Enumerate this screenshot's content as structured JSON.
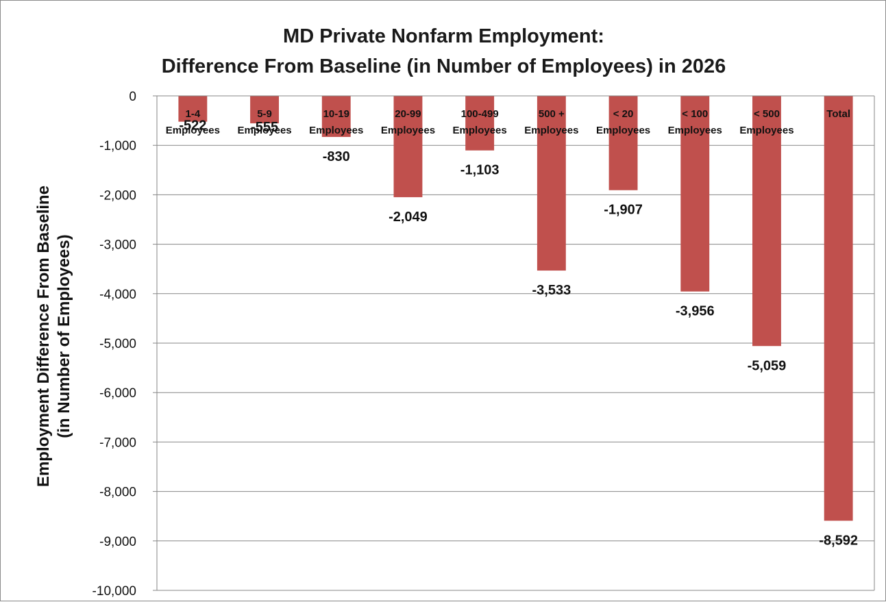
{
  "chart_data": {
    "type": "bar",
    "title_lines": [
      "MD Private Nonfarm Employment:",
      "Difference From Baseline (in Number of Employees) in 2026"
    ],
    "ylabel_lines": [
      "Employment Difference From Baseline",
      "(in Number of Employees)"
    ],
    "xlabel": "",
    "categories": [
      [
        "1-4",
        "Employees"
      ],
      [
        "5-9",
        "Employees"
      ],
      [
        "10-19",
        "Employees"
      ],
      [
        "20-99",
        "Employees"
      ],
      [
        "100-499",
        "Employees"
      ],
      [
        "500 +",
        "Employees"
      ],
      [
        "< 20",
        "Employees"
      ],
      [
        "< 100",
        "Employees"
      ],
      [
        "< 500",
        "Employees"
      ],
      [
        "Total"
      ]
    ],
    "values": [
      -522,
      -555,
      -830,
      -2049,
      -1103,
      -3533,
      -1907,
      -3956,
      -5059,
      -8592
    ],
    "data_labels": [
      "-522",
      "-555",
      "-830",
      "-2,049",
      "-1,103",
      "-3,533",
      "-1,907",
      "-3,956",
      "-5,059",
      "-8,592"
    ],
    "ylim": [
      -10000,
      0
    ],
    "yticks": [
      0,
      -1000,
      -2000,
      -3000,
      -4000,
      -5000,
      -6000,
      -7000,
      -8000,
      -9000,
      -10000
    ],
    "ytick_labels": [
      "0",
      "-1,000",
      "-2,000",
      "-3,000",
      "-4,000",
      "-5,000",
      "-6,000",
      "-7,000",
      "-8,000",
      "-9,000",
      "-10,000"
    ],
    "grid": true,
    "legend": "none",
    "bar_color": "#C0504D",
    "grid_color": "#868686"
  }
}
